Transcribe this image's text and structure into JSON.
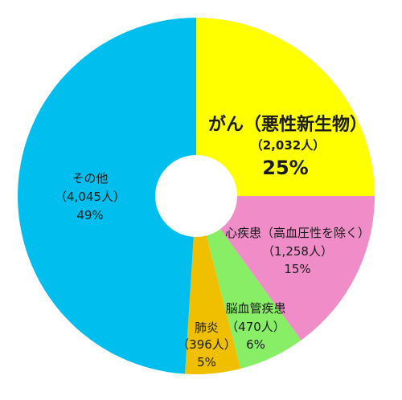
{
  "chart_data": {
    "type": "pie",
    "title": "",
    "series": [
      {
        "slices": [
          {
            "label": "がん（悪性新生物）",
            "count": "（2,032人）",
            "percent_label": "25%",
            "value": 25,
            "color": "#ffff00"
          },
          {
            "label": "心疾患（高血圧性を除く）",
            "count": "（1,258人）",
            "percent_label": "15%",
            "value": 15,
            "color": "#f08cc8"
          },
          {
            "label": "脳血管疾患",
            "count": "（470人）",
            "percent_label": "6%",
            "value": 6,
            "color": "#88ee66"
          },
          {
            "label": "肺炎",
            "count": "（396人）",
            "percent_label": "5%",
            "value": 5,
            "color": "#f0c000"
          },
          {
            "label": "その他",
            "count": "（4,045人）",
            "percent_label": "49%",
            "value": 49,
            "color": "#00bfee"
          }
        ]
      }
    ],
    "start_angle_deg": 0,
    "direction": "clockwise",
    "donut": true
  }
}
